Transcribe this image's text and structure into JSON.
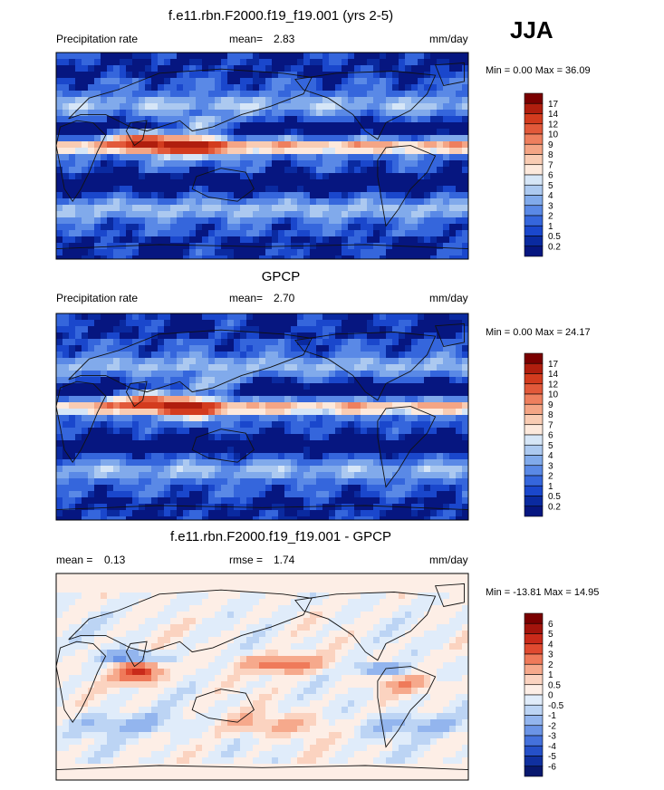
{
  "season": "JJA",
  "chart_data": [
    {
      "type": "heatmap",
      "title": "f.e11.rbn.F2000.f19_f19.001 (yrs 2-5)",
      "left_label": "Precipitation rate",
      "stat_label": "mean=",
      "stat_value": "2.83",
      "units": "mm/day",
      "minmax": "Min =   0.00 Max =  36.09",
      "min": 0.0,
      "max": 36.09,
      "colorbar_levels": [
        "17",
        "14",
        "12",
        "10",
        "9",
        "8",
        "7",
        "6",
        "5",
        "4",
        "3",
        "2",
        "1",
        "0.5",
        "0.2"
      ],
      "colorbar_colors": [
        "#7a0000",
        "#b01e0e",
        "#d33b1e",
        "#e2593a",
        "#ee7f5e",
        "#f4a585",
        "#f9ccb3",
        "#fde9dc",
        "#d6e6f7",
        "#acc9f0",
        "#81aaeb",
        "#5a89e6",
        "#3566dc",
        "#1a47cc",
        "#0a2aa0",
        "#061680"
      ]
    },
    {
      "type": "heatmap",
      "title": "GPCP",
      "left_label": "Precipitation rate",
      "stat_label": "mean=",
      "stat_value": "2.70",
      "units": "mm/day",
      "minmax": "Min =   0.00 Max =  24.17",
      "min": 0.0,
      "max": 24.17,
      "colorbar_levels": [
        "17",
        "14",
        "12",
        "10",
        "9",
        "8",
        "7",
        "6",
        "5",
        "4",
        "3",
        "2",
        "1",
        "0.5",
        "0.2"
      ],
      "colorbar_colors": [
        "#7a0000",
        "#b01e0e",
        "#d33b1e",
        "#e2593a",
        "#ee7f5e",
        "#f4a585",
        "#f9ccb3",
        "#fde9dc",
        "#d6e6f7",
        "#acc9f0",
        "#81aaeb",
        "#5a89e6",
        "#3566dc",
        "#1a47cc",
        "#0a2aa0",
        "#061680"
      ]
    },
    {
      "type": "heatmap",
      "title": "f.e11.rbn.F2000.f19_f19.001 - GPCP",
      "left_label": "mean =",
      "left_value": "0.13",
      "stat_label": "rmse =",
      "stat_value": "1.74",
      "units": "mm/day",
      "minmax": "Min = -13.81 Max =  14.95",
      "min": -13.81,
      "max": 14.95,
      "colorbar_levels": [
        "6",
        "5",
        "4",
        "3",
        "2",
        "1",
        "0.5",
        "0",
        "-0.5",
        "-1",
        "-2",
        "-3",
        "-4",
        "-5",
        "-6"
      ],
      "colorbar_colors": [
        "#7a0000",
        "#a3140c",
        "#c92a1a",
        "#e04a30",
        "#ef7a5a",
        "#f6a98c",
        "#fbd3c0",
        "#fdeee6",
        "#e0ecfa",
        "#bcd4f4",
        "#93b5ee",
        "#6b94e6",
        "#4471dc",
        "#2550c8",
        "#10309f",
        "#08186e"
      ]
    }
  ]
}
